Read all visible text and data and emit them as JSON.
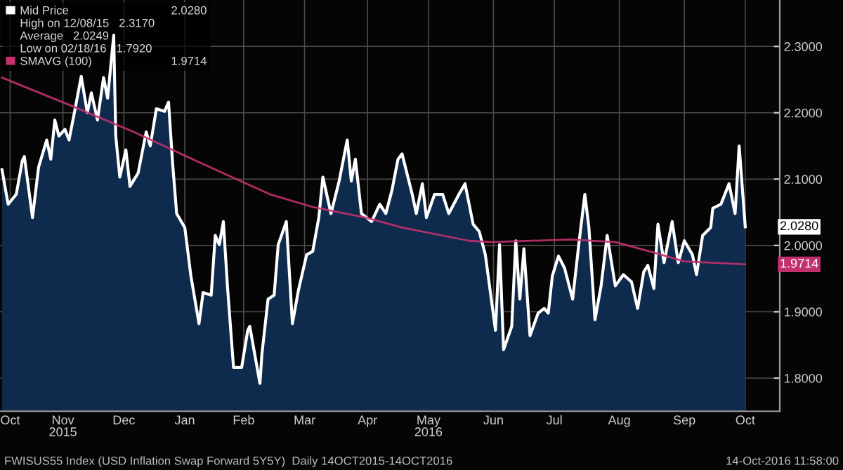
{
  "chart_data": {
    "type": "area",
    "title": "FWISUS55 Index (USD Inflation Swap Forward 5Y5Y)  Daily 14OCT2015-14OCT2016",
    "subtitle": "14-Oct-2016 11:58:00",
    "annotations": [
      "High on 12/08/15   2.3170",
      "Average   2.0249",
      "Low on 02/18/16   1.7920",
      "2.0280",
      "1.9714"
    ],
    "xlim": [
      "2015-10-13",
      "2016-10-31"
    ],
    "xticks": [
      {
        "value": "2015-10-18",
        "label": "Oct"
      },
      {
        "value": "2015-11-13",
        "label": "Nov\n2015"
      },
      {
        "value": "2015-12-13",
        "label": "Dec"
      },
      {
        "value": "2016-01-12",
        "label": "Jan"
      },
      {
        "value": "2016-02-10",
        "label": "Feb"
      },
      {
        "value": "2016-03-11",
        "label": "Mar"
      },
      {
        "value": "2016-04-11",
        "label": "Apr"
      },
      {
        "value": "2016-05-11",
        "label": "May\n2016"
      },
      {
        "value": "2016-06-12",
        "label": "Jun"
      },
      {
        "value": "2016-07-12",
        "label": "Jul"
      },
      {
        "value": "2016-08-13",
        "label": "Aug"
      },
      {
        "value": "2016-09-14",
        "label": "Sep"
      },
      {
        "value": "2016-10-14",
        "label": "Oct"
      }
    ],
    "ylim": [
      1.75,
      2.37
    ],
    "yticks": [
      {
        "value": 1.8,
        "label": "1.8000"
      },
      {
        "value": 1.9,
        "label": "1.9000"
      },
      {
        "value": 2.0,
        "label": "2.0000"
      },
      {
        "value": 2.1,
        "label": "2.1000"
      },
      {
        "value": 2.2,
        "label": "2.2000"
      },
      {
        "value": 2.3,
        "label": "2.3000"
      }
    ],
    "grid": true,
    "legend": "top left",
    "series": [
      {
        "name": "Mid Price",
        "color": "#ffffff",
        "x": [
          "2015-10-14",
          "2015-10-17",
          "2015-10-21",
          "2015-10-24",
          "2015-10-25",
          "2015-10-29",
          "2015-11-01",
          "2015-11-05",
          "2015-11-07",
          "2015-11-09",
          "2015-11-11",
          "2015-11-14",
          "2015-11-16",
          "2015-11-19",
          "2015-11-22",
          "2015-11-25",
          "2015-11-27",
          "2015-11-30",
          "2015-12-03",
          "2015-12-05",
          "2015-12-08",
          "2015-12-09",
          "2015-12-11",
          "2015-12-14",
          "2015-12-16",
          "2015-12-20",
          "2015-12-24",
          "2015-12-26",
          "2015-12-29",
          "2016-01-02",
          "2016-01-04",
          "2016-01-06",
          "2016-01-08",
          "2016-01-12",
          "2016-01-15",
          "2016-01-19",
          "2016-01-21",
          "2016-01-25",
          "2016-01-27",
          "2016-01-29",
          "2016-01-31",
          "2016-02-02",
          "2016-02-05",
          "2016-02-09",
          "2016-02-12",
          "2016-02-13",
          "2016-02-18",
          "2016-02-19",
          "2016-02-22",
          "2016-02-25",
          "2016-02-27",
          "2016-03-02",
          "2016-03-05",
          "2016-03-08",
          "2016-03-12",
          "2016-03-15",
          "2016-03-18",
          "2016-03-20",
          "2016-03-24",
          "2016-03-28",
          "2016-04-01",
          "2016-04-03",
          "2016-04-05",
          "2016-04-08",
          "2016-04-13",
          "2016-04-17",
          "2016-04-20",
          "2016-04-23",
          "2016-04-26",
          "2016-04-28",
          "2016-05-03",
          "2016-05-05",
          "2016-05-08",
          "2016-05-10",
          "2016-05-14",
          "2016-05-18",
          "2016-05-21",
          "2016-05-26",
          "2016-05-29",
          "2016-06-02",
          "2016-06-05",
          "2016-06-08",
          "2016-06-13",
          "2016-06-15",
          "2016-06-17",
          "2016-06-21",
          "2016-06-23",
          "2016-06-25",
          "2016-06-27",
          "2016-06-30",
          "2016-07-04",
          "2016-07-07",
          "2016-07-09",
          "2016-07-11",
          "2016-07-14",
          "2016-07-17",
          "2016-07-21",
          "2016-07-24",
          "2016-07-27",
          "2016-07-29",
          "2016-08-01",
          "2016-08-04",
          "2016-08-07",
          "2016-08-11",
          "2016-08-15",
          "2016-08-19",
          "2016-08-22",
          "2016-08-25",
          "2016-08-27",
          "2016-08-30",
          "2016-09-01",
          "2016-09-04",
          "2016-09-08",
          "2016-09-11",
          "2016-09-14",
          "2016-09-18",
          "2016-09-20",
          "2016-09-23",
          "2016-09-27",
          "2016-09-28",
          "2016-10-02",
          "2016-10-06",
          "2016-10-09",
          "2016-10-11",
          "2016-10-14"
        ],
        "values": [
          2.114,
          2.062,
          2.077,
          2.128,
          2.134,
          2.042,
          2.118,
          2.159,
          2.13,
          2.189,
          2.165,
          2.175,
          2.159,
          2.206,
          2.255,
          2.2,
          2.23,
          2.189,
          2.253,
          2.222,
          2.317,
          2.165,
          2.103,
          2.144,
          2.089,
          2.109,
          2.171,
          2.15,
          2.206,
          2.202,
          2.216,
          2.124,
          2.048,
          2.027,
          1.954,
          1.882,
          1.929,
          1.925,
          2.015,
          2.001,
          2.036,
          1.939,
          1.816,
          1.816,
          1.872,
          1.878,
          1.792,
          1.837,
          1.919,
          1.925,
          2.001,
          2.036,
          1.882,
          1.933,
          1.986,
          1.991,
          2.042,
          2.103,
          2.048,
          2.097,
          2.159,
          2.097,
          2.13,
          2.048,
          2.036,
          2.062,
          2.048,
          2.083,
          2.13,
          2.138,
          2.077,
          2.048,
          2.093,
          2.042,
          2.077,
          2.077,
          2.048,
          2.077,
          2.093,
          2.032,
          2.021,
          1.986,
          1.872,
          2.001,
          1.843,
          1.878,
          2.007,
          1.919,
          1.995,
          1.864,
          1.898,
          1.905,
          1.898,
          1.954,
          1.984,
          1.966,
          1.919,
          2.001,
          2.077,
          2.027,
          1.888,
          1.939,
          2.015,
          1.939,
          1.956,
          1.945,
          1.905,
          1.96,
          1.97,
          1.935,
          2.032,
          1.974,
          2.036,
          1.974,
          2.007,
          1.986,
          1.956,
          2.015,
          2.027,
          2.056,
          2.062,
          2.093,
          2.048,
          2.15,
          2.028
        ]
      },
      {
        "name": "SMAVG (100)",
        "type": "line",
        "color": "#c2306e",
        "x": [
          "2015-10-14",
          "2015-11-16",
          "2015-12-18",
          "2016-01-20",
          "2016-02-23",
          "2016-03-15",
          "2016-04-10",
          "2016-04-28",
          "2016-05-31",
          "2016-06-11",
          "2016-07-20",
          "2016-08-11",
          "2016-08-28",
          "2016-09-14",
          "2016-09-27",
          "2016-10-14"
        ],
        "values": [
          2.253,
          2.212,
          2.171,
          2.124,
          2.077,
          2.058,
          2.042,
          2.027,
          2.007,
          2.005,
          2.009,
          2.005,
          1.991,
          1.976,
          1.974,
          1.9714
        ]
      }
    ]
  }
}
